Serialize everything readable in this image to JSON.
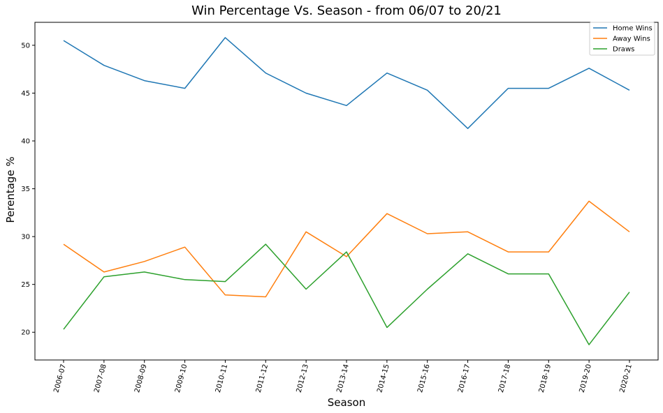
{
  "chart_data": {
    "type": "line",
    "title": "Win Percentage Vs. Season - from 06/07 to 20/21",
    "xlabel": "Season",
    "ylabel": "Perentage %",
    "categories": [
      "2006-07",
      "2007-08",
      "2008-09",
      "2009-10",
      "2010-11",
      "2011-12",
      "2012-13",
      "2013-14",
      "2014-15",
      "2015-16",
      "2016-17",
      "2017-18",
      "2018-19",
      "2019-20",
      "2020-21"
    ],
    "yticks": [
      "20",
      "25",
      "30",
      "35",
      "40",
      "45",
      "50"
    ],
    "ylim": [
      17.1,
      52.4
    ],
    "grid": false,
    "legend_position": "top-right",
    "series": [
      {
        "name": "Home Wins",
        "color": "#1f77b4",
        "values": [
          50.5,
          47.9,
          46.3,
          45.5,
          50.8,
          47.1,
          45.0,
          43.7,
          47.1,
          45.3,
          41.3,
          45.5,
          45.5,
          47.6,
          45.3
        ]
      },
      {
        "name": "Away Wins",
        "color": "#ff7f0e",
        "values": [
          29.2,
          26.3,
          27.4,
          28.9,
          23.9,
          23.7,
          30.5,
          27.9,
          32.4,
          30.3,
          30.5,
          28.4,
          28.4,
          33.7,
          30.5
        ]
      },
      {
        "name": "Draws",
        "color": "#2ca02c",
        "values": [
          20.3,
          25.8,
          26.3,
          25.5,
          25.3,
          29.2,
          24.5,
          28.4,
          20.5,
          24.5,
          28.2,
          26.1,
          26.1,
          18.7,
          24.2
        ]
      }
    ]
  }
}
